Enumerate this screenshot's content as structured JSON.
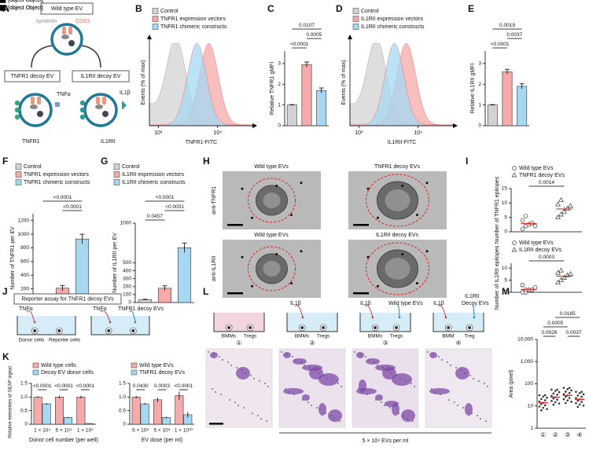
{
  "A": {
    "letter": "A",
    "wild_type": "Wild type EV",
    "syntenin": "syntenin",
    "cd63": "CD63",
    "tnfr1_decoy": "TNFR1 decoy EV",
    "il1rii_decoy": "IL1RII decoy EV",
    "tnfa": "TNFα",
    "tnfr1": "TNFR1",
    "il1b": "IL1β",
    "il1rii": "IL1RII"
  },
  "B": {
    "letter": "B",
    "type": "histogram",
    "legend": [
      "Control",
      "TNFR1 expression vectors",
      "TNFR1 chimeric constructs"
    ],
    "colors": [
      "#d3d3d3",
      "#f6aaaa",
      "#a6d8f2"
    ],
    "peaks": [
      3.3,
      3.85,
      3.65
    ],
    "ylabel": "Events (% of max)",
    "xlabel": "TNFR1-FITC",
    "xlim": [
      2.85,
      4.6
    ],
    "xticks": [
      {
        "value": 3,
        "label": "10³"
      },
      {
        "value": 4,
        "label": "10⁴"
      }
    ]
  },
  "C": {
    "letter": "C",
    "type": "bar",
    "ylabel": "Relative TNFR1 gMFI",
    "values": [
      1,
      2.95,
      1.7
    ],
    "errors": [
      0.02,
      0.12,
      0.12
    ],
    "colors": [
      "#d3d3d3",
      "#f6aaaa",
      "#a6d8f2"
    ],
    "ylim": [
      0,
      3.6
    ],
    "yticks": [
      0,
      1,
      2,
      3
    ],
    "pvalues": [
      "0.0107",
      "0.0005",
      "<0.0001"
    ]
  },
  "D": {
    "letter": "D",
    "type": "histogram",
    "legend": [
      "Control",
      "IL1RII expression vectors",
      "IL1RII chimeric constructs"
    ],
    "colors": [
      "#d3d3d3",
      "#f6aaaa",
      "#a6d8f2"
    ],
    "peaks": [
      3.3,
      3.8,
      3.6
    ],
    "ylabel": "Events (% of max)",
    "xlabel": "IL1RII-FITC",
    "xlim": [
      2.85,
      4.6
    ],
    "xticks": [
      {
        "value": 3,
        "label": "10³"
      },
      {
        "value": 4,
        "label": "10⁴"
      }
    ]
  },
  "E": {
    "letter": "E",
    "type": "bar",
    "ylabel": "Relative IL1RII gMFI",
    "values": [
      1,
      2.6,
      1.9
    ],
    "errors": [
      0.02,
      0.12,
      0.12
    ],
    "colors": [
      "#d3d3d3",
      "#f6aaaa",
      "#a6d8f2"
    ],
    "ylim": [
      0,
      3.6
    ],
    "yticks": [
      0,
      1,
      2,
      3
    ],
    "pvalues": [
      "0.0019",
      "0.0037",
      "<0.0001"
    ]
  },
  "F": {
    "letter": "F",
    "type": "bar",
    "legend": [
      "Control",
      "TNFR1 expression vectors",
      "TNFR1 chimeric constructs"
    ],
    "ylabel": "Number of TNFR1 per EV",
    "values": [
      45,
      210,
      930
    ],
    "errors": [
      8,
      40,
      70
    ],
    "colors": [
      "#d3d3d3",
      "#f6aaaa",
      "#a6d8f2"
    ],
    "ylim": [
      0,
      1300
    ],
    "yticks": [
      0,
      200,
      400,
      600,
      800,
      1000,
      1200
    ],
    "pvalues": [
      "<0.0001",
      "<0.0001"
    ]
  },
  "G": {
    "letter": "G",
    "type": "bar",
    "legend": [
      "Control",
      "IL1RII expression vectors",
      "IL1RII chimeric constructs"
    ],
    "ylabel": "Number of IL1RII per EV",
    "values": [
      35,
      180,
      690
    ],
    "errors": [
      6,
      30,
      60
    ],
    "colors": [
      "#d3d3d3",
      "#f6aaaa",
      "#a6d8f2"
    ],
    "ylim": [
      0,
      1000
    ],
    "yticks": [
      0,
      100,
      200,
      300,
      400,
      500,
      1000
    ],
    "pvalues": [
      "<0.0001",
      "<0.0001",
      "0.0457"
    ]
  },
  "H": {
    "letter": "H",
    "col1": "Wild type EVs",
    "col2": "TNFR1 decoy EVs",
    "row1": "anti-TNFR1",
    "col3": "Wild type EVs",
    "col4": "IL1RII decoy EVs",
    "row2": "anti-IL1RII"
  },
  "I": {
    "letter": "I",
    "plots": [
      {
        "series": [
          {
            "name": "Wild type EVs",
            "values": [
              1,
              2,
              2.5,
              3,
              2,
              4,
              5.5
            ]
          },
          {
            "name": "TNFR1 decoy EVs",
            "values": [
              5,
              6,
              7,
              8,
              9,
              9.5,
              11
            ]
          }
        ],
        "ylabel": "Number of TNFR1 epitopes",
        "ylim": [
          0,
          15
        ],
        "yticks": [
          0,
          5,
          10,
          15
        ],
        "pvalue": "0.0014"
      },
      {
        "series": [
          {
            "name": "Wild type EVs",
            "values": [
              0,
              0,
              1,
              1,
              2,
              3,
              1
            ]
          },
          {
            "name": "IL1RII decoy EVs",
            "values": [
              4,
              5,
              6,
              7,
              7.5,
              8,
              9
            ]
          }
        ],
        "ylabel": "Number of IL1RII epitopes",
        "ylim": [
          0,
          12
        ],
        "yticks": [
          0,
          5,
          10
        ],
        "pvalue": "0.0003"
      }
    ]
  },
  "J": {
    "letter": "J",
    "title": "Reporter assay for TNFR1 decoy EVs",
    "tnfa_1": "TNFα",
    "tnfa_2": "TNFα",
    "decoy": "TNFR1 decoy EVs",
    "donor": "Donor cells",
    "reporter": "Reporter cells"
  },
  "K": {
    "letter": "K",
    "ylabel": "Relative intensities of SEAP signal",
    "plots": [
      {
        "categories": [
          "1 × 10⁴",
          "5 × 10⁴",
          "1 × 10⁵"
        ],
        "xlabel": "Donor cell number (per well)",
        "series": [
          {
            "name": "Wild type cells",
            "color": "#f6aaaa",
            "values": [
              1,
              1,
              1
            ],
            "errors": [
              0.03,
              0.05,
              0.05
            ]
          },
          {
            "name": "Decoy EV donor cells",
            "color": "#a6d8f2",
            "values": [
              0.75,
              0.25,
              0.03
            ],
            "errors": [
              0.03,
              0.02,
              0.01
            ]
          }
        ],
        "pvalues": [
          "<0.0001",
          "<0.0001",
          "<0.0001"
        ],
        "ylim": [
          0,
          1.5
        ],
        "yticks": [
          0,
          0.5,
          {
            "value": 1,
            "label": "1.0"
          },
          {
            "value": 1.5,
            "label": "1.5"
          }
        ]
      },
      {
        "categories": [
          "5 × 10⁸",
          "5 × 10⁹",
          "1 × 10¹⁰"
        ],
        "xlabel": "EV dose (per ml)",
        "series": [
          {
            "name": "Wild type EVs",
            "color": "#f6aaaa",
            "values": [
              1,
              0.9,
              1.05
            ],
            "errors": [
              0.04,
              0.08,
              0.15
            ]
          },
          {
            "name": "TNFR1 decoy EVs",
            "color": "#a6d8f2",
            "values": [
              0.75,
              0.25,
              0.35
            ],
            "errors": [
              0.03,
              0.03,
              0.1
            ]
          }
        ],
        "pvalues": [
          "0.0430",
          "0.0003",
          "<0.0001"
        ],
        "ylim": [
          0,
          1.5
        ],
        "yticks": [
          0,
          0.5,
          {
            "value": 1,
            "label": "1.0"
          },
          {
            "value": 1.5,
            "label": "1.5"
          }
        ]
      }
    ]
  },
  "L": {
    "letter": "L",
    "w1_a": "BMMs",
    "w1_b": "Tregs",
    "n1": "①",
    "w2_top": "IL1β",
    "w2_a": "BMMs",
    "w2_b": "Tregs",
    "n2": "②",
    "w3_top": "IL1β",
    "w3_ev": "Wild type EVs",
    "w3_a": "BMMs",
    "w3_b": "Tregs",
    "n3": "③",
    "w4_top": "IL1β",
    "w4_ev1": "IL1RII",
    "w4_ev2": "Decoy EVs",
    "w4_a": "BMM",
    "w4_b": "Treg",
    "n4": "④",
    "dose": "5 × 10⁹ EVs per ml"
  },
  "M": {
    "letter": "M",
    "ylabel": "Area (pixel)",
    "categories": [
      "①",
      "②",
      "③",
      "④"
    ],
    "values": [
      14,
      25,
      30,
      20
    ],
    "log": true,
    "ylim": [
      1,
      10000
    ],
    "yticks": [
      1,
      10,
      100,
      {
        "value": 1000,
        "label": "1,000"
      },
      {
        "value": 10000,
        "label": "10,000"
      }
    ],
    "pvalues": [
      "0.0185",
      "0.0005",
      "0.0026",
      "0.0037"
    ]
  }
}
